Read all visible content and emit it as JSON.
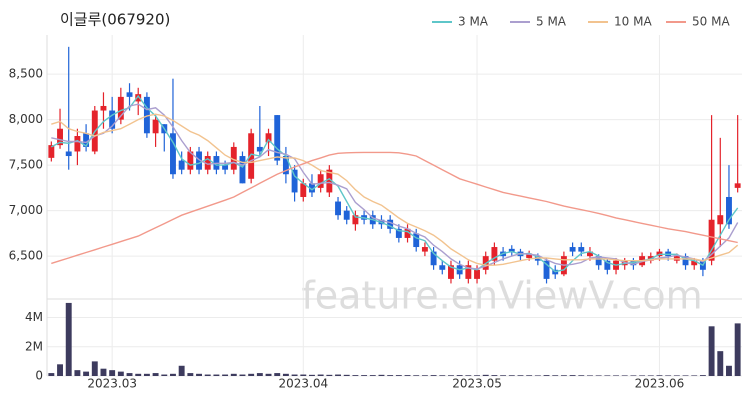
{
  "chart_data": {
    "type": "candlestick",
    "title": "이글루(067920)",
    "watermark": "feature.enViewV.com",
    "legend": "top-right",
    "grid": true,
    "xlim": [
      -0.5,
      79.5
    ],
    "xticks": [
      {
        "value": 7,
        "label": "2023.03"
      },
      {
        "value": 29,
        "label": "2023.04"
      },
      {
        "value": 49,
        "label": "2023.05"
      },
      {
        "value": 70,
        "label": "2023.06"
      }
    ],
    "ylim": [
      6040,
      8930
    ],
    "yticks": [
      {
        "value": 6500,
        "label": "6,500"
      },
      {
        "value": 7000,
        "label": "7,000"
      },
      {
        "value": 7500,
        "label": "7,500"
      },
      {
        "value": 8000,
        "label": "8,000"
      },
      {
        "value": 8500,
        "label": "8,500"
      }
    ],
    "up_color": "#e4232b",
    "down_color": "#1f63d8",
    "open": [
      7580,
      7720,
      7650,
      7650,
      7850,
      7650,
      8100,
      8100,
      8000,
      8300,
      8200,
      8250,
      7850,
      7950,
      7850,
      7550,
      7450,
      7650,
      7450,
      7600,
      7500,
      7450,
      7600,
      7350,
      7700,
      7750,
      8050,
      7600,
      7450,
      7150,
      7300,
      7250,
      7200,
      7100,
      7000,
      6850,
      6950,
      6950,
      6900,
      6900,
      6800,
      6700,
      6750,
      6550,
      6550,
      6400,
      6250,
      6400,
      6250,
      6250,
      6350,
      6450,
      6550,
      6580,
      6550,
      6480,
      6500,
      6450,
      6350,
      6300,
      6600,
      6600,
      6500,
      6500,
      6450,
      6350,
      6400,
      6450,
      6400,
      6450,
      6500,
      6550,
      6450,
      6500,
      6400,
      6450,
      6450,
      6850,
      7150,
      7250
    ],
    "high": [
      7760,
      8120,
      8800,
      7900,
      7950,
      8150,
      8300,
      8250,
      8350,
      8400,
      8350,
      8300,
      8050,
      7950,
      8450,
      7650,
      7700,
      7700,
      7650,
      7650,
      7550,
      7750,
      7650,
      7900,
      8150,
      7900,
      8050,
      7700,
      7500,
      7350,
      7400,
      7450,
      7500,
      7150,
      7050,
      7000,
      7000,
      7000,
      6950,
      6950,
      6850,
      6850,
      6800,
      6650,
      6600,
      6450,
      6450,
      6450,
      6450,
      6400,
      6550,
      6650,
      6600,
      6620,
      6580,
      6560,
      6530,
      6480,
      6400,
      6550,
      6650,
      6650,
      6600,
      6520,
      6480,
      6480,
      6480,
      6480,
      6540,
      6540,
      6580,
      6580,
      6530,
      6530,
      6480,
      6480,
      8050,
      7800,
      7500,
      8050
    ],
    "low": [
      7540,
      7680,
      7450,
      7500,
      7650,
      7620,
      7900,
      7850,
      7950,
      8100,
      8050,
      7800,
      7700,
      7650,
      7350,
      7400,
      7400,
      7400,
      7400,
      7400,
      7400,
      7400,
      7300,
      7300,
      7600,
      7600,
      7500,
      7300,
      7100,
      7100,
      7150,
      7200,
      7150,
      6900,
      6850,
      6780,
      6850,
      6800,
      6800,
      6750,
      6650,
      6650,
      6550,
      6500,
      6350,
      6300,
      6200,
      6250,
      6200,
      6200,
      6300,
      6400,
      6450,
      6500,
      6450,
      6450,
      6400,
      6200,
      6250,
      6280,
      6500,
      6500,
      6450,
      6350,
      6300,
      6300,
      6350,
      6350,
      6380,
      6420,
      6450,
      6450,
      6420,
      6350,
      6350,
      6280,
      6400,
      6600,
      6800,
      7200
    ],
    "close": [
      7720,
      7900,
      7600,
      7820,
      7700,
      8100,
      8150,
      7900,
      8250,
      8250,
      8280,
      7850,
      8000,
      7850,
      7400,
      7450,
      7650,
      7450,
      7600,
      7450,
      7450,
      7700,
      7300,
      7850,
      7650,
      7850,
      7550,
      7400,
      7200,
      7300,
      7200,
      7400,
      7450,
      6950,
      6900,
      6950,
      6900,
      6850,
      6850,
      6800,
      6700,
      6800,
      6600,
      6600,
      6400,
      6350,
      6400,
      6300,
      6400,
      6350,
      6500,
      6600,
      6500,
      6550,
      6500,
      6530,
      6450,
      6250,
      6300,
      6500,
      6550,
      6550,
      6550,
      6400,
      6350,
      6450,
      6450,
      6400,
      6500,
      6500,
      6550,
      6500,
      6500,
      6400,
      6450,
      6350,
      6900,
      6950,
      6850,
      7300
    ],
    "series": [
      {
        "name": "3 MA",
        "color": "#5ec6c9",
        "values": [
          7700,
          7750,
          7740,
          7770,
          7710,
          7870,
          7980,
          8050,
          8100,
          8130,
          8260,
          8130,
          8040,
          7900,
          7750,
          7570,
          7500,
          7520,
          7570,
          7500,
          7500,
          7530,
          7480,
          7620,
          7600,
          7780,
          7680,
          7600,
          7380,
          7300,
          7230,
          7300,
          7350,
          7270,
          7100,
          6930,
          6920,
          6900,
          6870,
          6830,
          6780,
          6770,
          6700,
          6670,
          6530,
          6450,
          6380,
          6350,
          6370,
          6350,
          6420,
          6480,
          6530,
          6550,
          6520,
          6530,
          6490,
          6410,
          6330,
          6350,
          6450,
          6530,
          6550,
          6500,
          6430,
          6400,
          6420,
          6430,
          6450,
          6470,
          6520,
          6520,
          6520,
          6470,
          6450,
          6400,
          6570,
          6730,
          6900,
          7030
        ]
      },
      {
        "name": "5 MA",
        "color": "#ab9fcf",
        "values": [
          7800,
          7780,
          7760,
          7760,
          7750,
          7820,
          7850,
          7930,
          8040,
          8150,
          8170,
          8110,
          8130,
          8050,
          7920,
          7770,
          7640,
          7560,
          7510,
          7520,
          7520,
          7530,
          7500,
          7550,
          7590,
          7670,
          7640,
          7620,
          7570,
          7420,
          7290,
          7300,
          7310,
          7280,
          7240,
          7090,
          7010,
          6920,
          6890,
          6870,
          6830,
          6800,
          6750,
          6710,
          6620,
          6550,
          6470,
          6410,
          6370,
          6360,
          6390,
          6430,
          6470,
          6500,
          6530,
          6520,
          6510,
          6460,
          6420,
          6400,
          6410,
          6430,
          6480,
          6490,
          6480,
          6470,
          6430,
          6410,
          6440,
          6460,
          6480,
          6490,
          6510,
          6490,
          6470,
          6440,
          6520,
          6610,
          6700,
          6870
        ]
      },
      {
        "name": "10 MA",
        "color": "#f2c38f",
        "values": [
          7950,
          7980,
          7900,
          7870,
          7850,
          7820,
          7860,
          7880,
          7900,
          7950,
          8000,
          8040,
          8060,
          8040,
          7990,
          7930,
          7870,
          7830,
          7770,
          7690,
          7610,
          7560,
          7530,
          7530,
          7550,
          7570,
          7590,
          7580,
          7580,
          7550,
          7500,
          7440,
          7420,
          7400,
          7330,
          7230,
          7150,
          7100,
          7060,
          6990,
          6920,
          6860,
          6820,
          6780,
          6730,
          6660,
          6580,
          6520,
          6460,
          6420,
          6400,
          6400,
          6410,
          6430,
          6450,
          6470,
          6480,
          6480,
          6470,
          6460,
          6460,
          6460,
          6470,
          6470,
          6470,
          6460,
          6450,
          6450,
          6450,
          6460,
          6470,
          6470,
          6470,
          6470,
          6470,
          6450,
          6480,
          6510,
          6540,
          6620
        ]
      },
      {
        "name": "50 MA",
        "color": "#f2998b",
        "values": [
          6420,
          6450,
          6480,
          6510,
          6540,
          6570,
          6600,
          6630,
          6660,
          6690,
          6720,
          6766,
          6812,
          6858,
          6904,
          6950,
          6983,
          7016,
          7049,
          7082,
          7115,
          7150,
          7200,
          7250,
          7300,
          7350,
          7400,
          7440,
          7480,
          7515,
          7550,
          7580,
          7610,
          7630,
          7635,
          7638,
          7640,
          7640,
          7640,
          7640,
          7635,
          7620,
          7600,
          7550,
          7500,
          7450,
          7400,
          7350,
          7320,
          7290,
          7260,
          7230,
          7200,
          7180,
          7160,
          7140,
          7120,
          7100,
          7075,
          7050,
          7030,
          7010,
          6990,
          6970,
          6945,
          6920,
          6900,
          6880,
          6860,
          6840,
          6820,
          6800,
          6785,
          6770,
          6750,
          6730,
          6710,
          6690,
          6670,
          6650
        ]
      }
    ],
    "volume": {
      "color": "#3d3b5e",
      "ylim": [
        0,
        5200000
      ],
      "yticks": [
        0,
        {
          "value": 2000000,
          "label": "2M"
        },
        {
          "value": 4000000,
          "label": "4M"
        }
      ],
      "values": [
        200000,
        800000,
        5000000,
        400000,
        300000,
        1000000,
        500000,
        400000,
        300000,
        200000,
        150000,
        150000,
        200000,
        100000,
        150000,
        700000,
        200000,
        150000,
        100000,
        100000,
        100000,
        150000,
        100000,
        150000,
        200000,
        150000,
        200000,
        150000,
        100000,
        100000,
        80000,
        100000,
        80000,
        100000,
        80000,
        60000,
        60000,
        60000,
        80000,
        60000,
        60000,
        60000,
        50000,
        50000,
        60000,
        50000,
        50000,
        60000,
        50000,
        50000,
        80000,
        60000,
        50000,
        50000,
        50000,
        50000,
        40000,
        60000,
        50000,
        50000,
        60000,
        50000,
        40000,
        40000,
        40000,
        40000,
        40000,
        40000,
        40000,
        40000,
        50000,
        40000,
        40000,
        40000,
        40000,
        60000,
        3400000,
        1700000,
        700000,
        3600000
      ]
    }
  }
}
